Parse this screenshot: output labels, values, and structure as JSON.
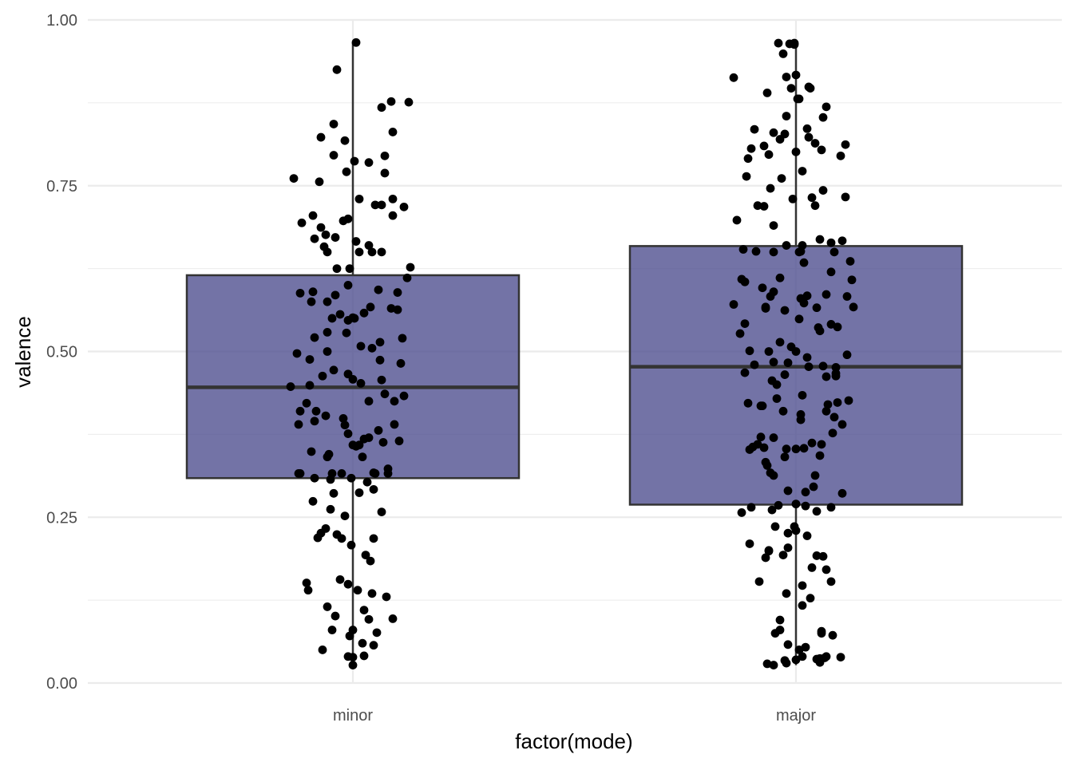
{
  "chart_data": {
    "type": "boxplot",
    "title": "",
    "xlabel": "factor(mode)",
    "ylabel": "valence",
    "ylim": [
      0,
      1
    ],
    "yticks": [
      "0.00",
      "0.25",
      "0.50",
      "0.75",
      "1.00"
    ],
    "yticks_values": [
      0,
      0.25,
      0.5,
      0.75,
      1.0
    ],
    "categories": [
      "minor",
      "major"
    ],
    "grid": true,
    "box_fill": "#4b4c8d",
    "box_stroke": "#333333",
    "point_color": "#000000",
    "boxes": [
      {
        "category": "minor",
        "min": 0.027,
        "q1": 0.309,
        "median": 0.446,
        "q3": 0.615,
        "max": 0.966
      },
      {
        "category": "major",
        "min": 0.027,
        "q1": 0.269,
        "median": 0.477,
        "q3": 0.659,
        "max": 0.965
      }
    ],
    "points": [
      {
        "category": "minor",
        "jitter": [
          0.02,
          -0.1,
          0.24,
          0.35,
          0.18,
          -0.12,
          0.25,
          -0.2,
          -0.05,
          -0.12,
          0.2,
          0.01,
          0.1,
          -0.04,
          0.2,
          -0.37,
          -0.21,
          0.04,
          0.25,
          0.14,
          0.18,
          0.32,
          0.25,
          -0.25,
          -0.03,
          -0.06,
          -0.32,
          -0.2,
          -0.17,
          -0.11,
          -0.24,
          0.02,
          0.1,
          -0.18,
          0.18,
          -0.16,
          0.04,
          0.12,
          0.36,
          -0.02,
          -0.1,
          0.34,
          -0.03,
          0.16,
          -0.25,
          0.28,
          -0.33,
          -0.11,
          -0.16,
          -0.26,
          0.11,
          0.24,
          0.28,
          0.07,
          -0.08,
          0.0,
          -0.13,
          0.01,
          -0.03,
          -0.16,
          -0.04,
          -0.24,
          0.31,
          0.17,
          0.05,
          0.12,
          -0.16,
          -0.35,
          -0.27,
          0.17,
          0.3,
          -0.12,
          -0.03,
          -0.19,
          0.0,
          0.18,
          0.05,
          -0.27,
          -0.39,
          0.2,
          0.32,
          0.1,
          0.26,
          -0.29,
          -0.33,
          -0.23,
          -0.17,
          -0.06,
          -0.24,
          -0.34,
          0.26,
          -0.05,
          0.16,
          -0.03,
          0.1,
          0.07,
          0.29,
          0.19,
          0.04,
          0.0,
          0.02,
          -0.26,
          0.06,
          -0.15,
          -0.16,
          0.22,
          0.13,
          0.14,
          -0.07,
          -0.13,
          0.22,
          -0.34,
          -0.33,
          -0.24,
          -0.01,
          -0.14,
          0.09,
          0.04,
          -0.12,
          0.13,
          -0.25,
          -0.14,
          0.18,
          -0.05,
          -0.17,
          -0.2,
          -0.1,
          -0.22,
          -0.07,
          0.13,
          -0.01,
          0.08,
          0.11,
          -0.08,
          -0.29,
          -0.03,
          -0.28,
          0.03,
          0.12,
          0.21,
          -0.16,
          0.07,
          -0.11,
          0.25,
          0.1,
          0.0,
          -0.13,
          0.15,
          -0.02,
          0.06,
          0.13,
          -0.19,
          0.07,
          -0.03,
          0.0,
          0.0
        ],
        "values": [
          0.966,
          0.925,
          0.877,
          0.876,
          0.868,
          0.843,
          0.831,
          0.823,
          0.818,
          0.796,
          0.795,
          0.787,
          0.785,
          0.771,
          0.769,
          0.761,
          0.756,
          0.73,
          0.73,
          0.721,
          0.721,
          0.718,
          0.705,
          0.705,
          0.7,
          0.697,
          0.694,
          0.687,
          0.676,
          0.672,
          0.67,
          0.666,
          0.66,
          0.658,
          0.65,
          0.65,
          0.65,
          0.65,
          0.627,
          0.625,
          0.625,
          0.611,
          0.6,
          0.593,
          0.59,
          0.589,
          0.588,
          0.585,
          0.575,
          0.575,
          0.567,
          0.565,
          0.563,
          0.558,
          0.556,
          0.551,
          0.55,
          0.55,
          0.547,
          0.529,
          0.528,
          0.521,
          0.52,
          0.514,
          0.508,
          0.505,
          0.5,
          0.497,
          0.488,
          0.487,
          0.482,
          0.472,
          0.466,
          0.463,
          0.458,
          0.457,
          0.452,
          0.449,
          0.447,
          0.436,
          0.433,
          0.425,
          0.425,
          0.422,
          0.41,
          0.41,
          0.403,
          0.399,
          0.395,
          0.39,
          0.39,
          0.389,
          0.381,
          0.376,
          0.37,
          0.368,
          0.365,
          0.363,
          0.359,
          0.359,
          0.357,
          0.349,
          0.341,
          0.345,
          0.341,
          0.323,
          0.317,
          0.316,
          0.316,
          0.316,
          0.316,
          0.316,
          0.316,
          0.309,
          0.309,
          0.307,
          0.303,
          0.287,
          0.286,
          0.292,
          0.274,
          0.262,
          0.258,
          0.252,
          0.233,
          0.226,
          0.224,
          0.219,
          0.218,
          0.218,
          0.208,
          0.193,
          0.184,
          0.156,
          0.151,
          0.149,
          0.14,
          0.14,
          0.135,
          0.13,
          0.115,
          0.11,
          0.101,
          0.097,
          0.096,
          0.08,
          0.08,
          0.076,
          0.071,
          0.06,
          0.057,
          0.05,
          0.041,
          0.04,
          0.039,
          0.027
        ]
      },
      {
        "category": "major",
        "jitter": [
          -0.11,
          0.99,
          0.96,
          -0.01,
          -0.08,
          0.94,
          0.0,
          -0.39,
          0.08,
          0.09,
          0.97,
          -0.18,
          0.01,
          0.02,
          0.19,
          -0.06,
          0.17,
          0.07,
          -0.26,
          -0.14,
          -0.07,
          0.08,
          -0.1,
          0.12,
          0.31,
          -0.2,
          -0.28,
          0.16,
          0.0,
          -0.17,
          0.28,
          -0.3,
          0.04,
          -0.31,
          -0.09,
          -0.16,
          0.17,
          0.31,
          0.1,
          -0.02,
          -0.24,
          0.12,
          -0.2,
          -0.37,
          -0.14,
          0.15,
          0.29,
          0.22,
          -0.06,
          0.04,
          -0.33,
          -0.25,
          0.03,
          0.02,
          -0.14,
          0.24,
          0.34,
          0.05,
          0.22,
          -0.1,
          -0.34,
          0.35,
          -0.32,
          -0.21,
          -0.14,
          0.19,
          0.07,
          -0.16,
          0.32,
          0.03,
          0.05,
          -0.39,
          -0.19,
          0.36,
          0.13,
          -0.19,
          -0.07,
          0.02,
          -0.32,
          0.22,
          0.26,
          0.14,
          0.15,
          -0.35,
          -0.1,
          -0.03,
          -0.29,
          -0.17,
          0.0,
          0.32,
          0.07,
          -0.14,
          -0.05,
          -0.26,
          0.17,
          0.08,
          0.25,
          -0.32,
          0.25,
          -0.07,
          0.25,
          0.19,
          -0.15,
          -0.12,
          0.04,
          -0.12,
          0.33,
          0.26,
          -0.3,
          0.2,
          -0.21,
          -0.22,
          -0.08,
          0.19,
          0.03,
          0.24,
          0.03,
          0.29,
          0.23,
          -0.22,
          -0.14,
          0.1,
          -0.24,
          0.16,
          -0.27,
          -0.2,
          0.05,
          -0.06,
          0.0,
          -0.29,
          0.15,
          -0.07,
          -0.19,
          -0.18,
          -0.16,
          -0.14,
          0.12,
          0.11,
          -0.05,
          0.06,
          0.29,
          0.0,
          -0.11,
          0.06,
          -0.28,
          0.22,
          -0.15,
          0.13,
          -0.34,
          -0.13,
          -0.01,
          0.0,
          -0.05,
          0.07,
          -0.29,
          -0.05,
          -0.17,
          -0.17,
          -0.08,
          0.13,
          0.17,
          -0.19,
          0.1,
          0.19,
          0.22,
          -0.23,
          0.04,
          -0.06,
          0.09,
          0.04,
          -0.1,
          -0.1,
          0.16,
          0.16,
          -0.13,
          0.23,
          -0.05,
          0.06,
          0.02,
          0.04,
          0.19,
          0.18,
          0.28,
          0.15,
          0.13,
          0.0,
          -0.07,
          0.15,
          -0.06,
          -0.18,
          -0.14,
          -0.01,
          -0.21,
          0.0,
          -0.16,
          -0.19,
          0.23,
          0.1,
          0.15,
          0.21,
          0.29,
          -0.17,
          0.1,
          -0.2,
          -0.09,
          -0.02,
          0.1,
          -0.23,
          0.24,
          0.09,
          -0.12,
          0.16,
          -0.13,
          0.1,
          0.0,
          -0.12,
          0.19,
          -0.08,
          -0.22,
          0.04,
          -0.01,
          -0.06,
          -0.22,
          0.01,
          -0.2,
          -0.28,
          0.16,
          0.03,
          -0.2,
          -0.17,
          0.16,
          -0.05,
          -0.1,
          0.16,
          0.04,
          -0.31,
          -0.14,
          0.05,
          -0.23,
          -0.14,
          0.01,
          -0.05,
          0.0,
          0.12,
          0.14,
          -0.3,
          0.11,
          0.1,
          0.07,
          -0.02,
          -0.09,
          -0.15,
          0.11,
          -0.16,
          0.0,
          0.08,
          -0.2,
          -0.19,
          0.06,
          0.11,
          -0.15,
          0.07,
          0.19,
          0.14,
          0.17,
          -0.05,
          -0.08,
          0.0,
          0.07
        ],
        "values": [
          0.965,
          0.965,
          0.964,
          0.963,
          0.949,
          0.914,
          0.917,
          0.913,
          0.899,
          0.897,
          0.897,
          0.89,
          0.881,
          0.881,
          0.869,
          0.855,
          0.853,
          0.836,
          0.835,
          0.83,
          0.828,
          0.823,
          0.82,
          0.814,
          0.812,
          0.81,
          0.806,
          0.804,
          0.801,
          0.797,
          0.795,
          0.791,
          0.772,
          0.764,
          0.761,
          0.746,
          0.743,
          0.733,
          0.732,
          0.73,
          0.72,
          0.72,
          0.719,
          0.698,
          0.69,
          0.669,
          0.667,
          0.664,
          0.66,
          0.66,
          0.654,
          0.651,
          0.651,
          0.65,
          0.65,
          0.65,
          0.636,
          0.634,
          0.62,
          0.611,
          0.609,
          0.608,
          0.605,
          0.596,
          0.59,
          0.586,
          0.584,
          0.583,
          0.583,
          0.58,
          0.573,
          0.571,
          0.567,
          0.567,
          0.566,
          0.565,
          0.562,
          0.549,
          0.542,
          0.541,
          0.537,
          0.536,
          0.531,
          0.527,
          0.514,
          0.507,
          0.501,
          0.5,
          0.5,
          0.495,
          0.491,
          0.484,
          0.483,
          0.48,
          0.478,
          0.477,
          0.476,
          0.468,
          0.467,
          0.465,
          0.463,
          0.462,
          0.456,
          0.45,
          0.434,
          0.429,
          0.426,
          0.423,
          0.422,
          0.42,
          0.418,
          0.418,
          0.41,
          0.41,
          0.405,
          0.401,
          0.397,
          0.39,
          0.377,
          0.371,
          0.37,
          0.362,
          0.36,
          0.36,
          0.356,
          0.355,
          0.354,
          0.353,
          0.353,
          0.352,
          0.343,
          0.341,
          0.333,
          0.328,
          0.317,
          0.313,
          0.313,
          0.296,
          0.29,
          0.288,
          0.286,
          0.27,
          0.268,
          0.267,
          0.265,
          0.265,
          0.261,
          0.259,
          0.257,
          0.236,
          0.236,
          0.23,
          0.226,
          0.222,
          0.21,
          0.204,
          0.2,
          0.199,
          0.193,
          0.192,
          0.191,
          0.189,
          0.174,
          0.171,
          0.153,
          0.153,
          0.147,
          0.135,
          0.128,
          0.117,
          0.095,
          0.08,
          0.078,
          0.075,
          0.075,
          0.072,
          0.058,
          0.054,
          0.05,
          0.04,
          0.04,
          0.038,
          0.039,
          0.037,
          0.036,
          0.035,
          0.034,
          0.031,
          0.03,
          0.029,
          0.027
        ]
      }
    ]
  }
}
